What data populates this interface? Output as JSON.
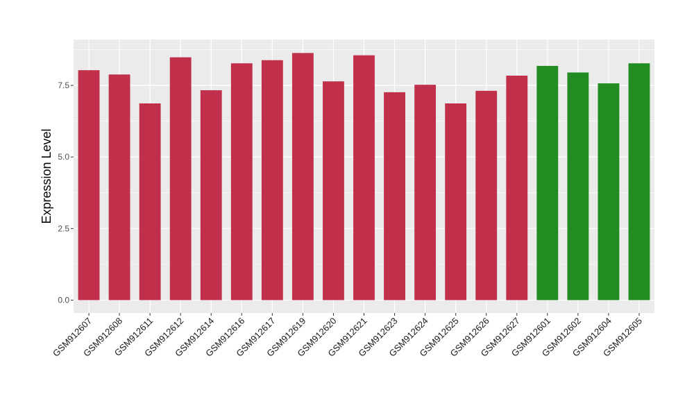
{
  "chart_data": {
    "type": "bar",
    "title": "",
    "xlabel": "",
    "ylabel": "Expression Level",
    "ylim": [
      -0.45,
      9.1
    ],
    "yticks": [
      0.0,
      2.5,
      5.0,
      7.5
    ],
    "ytick_labels": [
      "0.0",
      "2.5",
      "5.0",
      "7.5"
    ],
    "grid": true,
    "legend": "none",
    "categories": [
      "GSM912607",
      "GSM912608",
      "GSM912611",
      "GSM912612",
      "GSM912614",
      "GSM912616",
      "GSM912617",
      "GSM912619",
      "GSM912620",
      "GSM912621",
      "GSM912623",
      "GSM912624",
      "GSM912625",
      "GSM912626",
      "GSM912627",
      "GSM912601",
      "GSM912602",
      "GSM912604",
      "GSM912605"
    ],
    "values": [
      8.03,
      7.88,
      6.87,
      8.48,
      7.33,
      8.27,
      8.38,
      8.63,
      7.64,
      8.55,
      7.26,
      7.52,
      6.87,
      7.31,
      7.84,
      8.18,
      7.95,
      7.57,
      8.27
    ],
    "group_colors": {
      "red": "#c1304a",
      "green": "#228b22"
    },
    "bar_groups": [
      "red",
      "red",
      "red",
      "red",
      "red",
      "red",
      "red",
      "red",
      "red",
      "red",
      "red",
      "red",
      "red",
      "red",
      "red",
      "green",
      "green",
      "green",
      "green"
    ],
    "panel_background": "#ebebeb",
    "grid_color": "#ffffff"
  }
}
